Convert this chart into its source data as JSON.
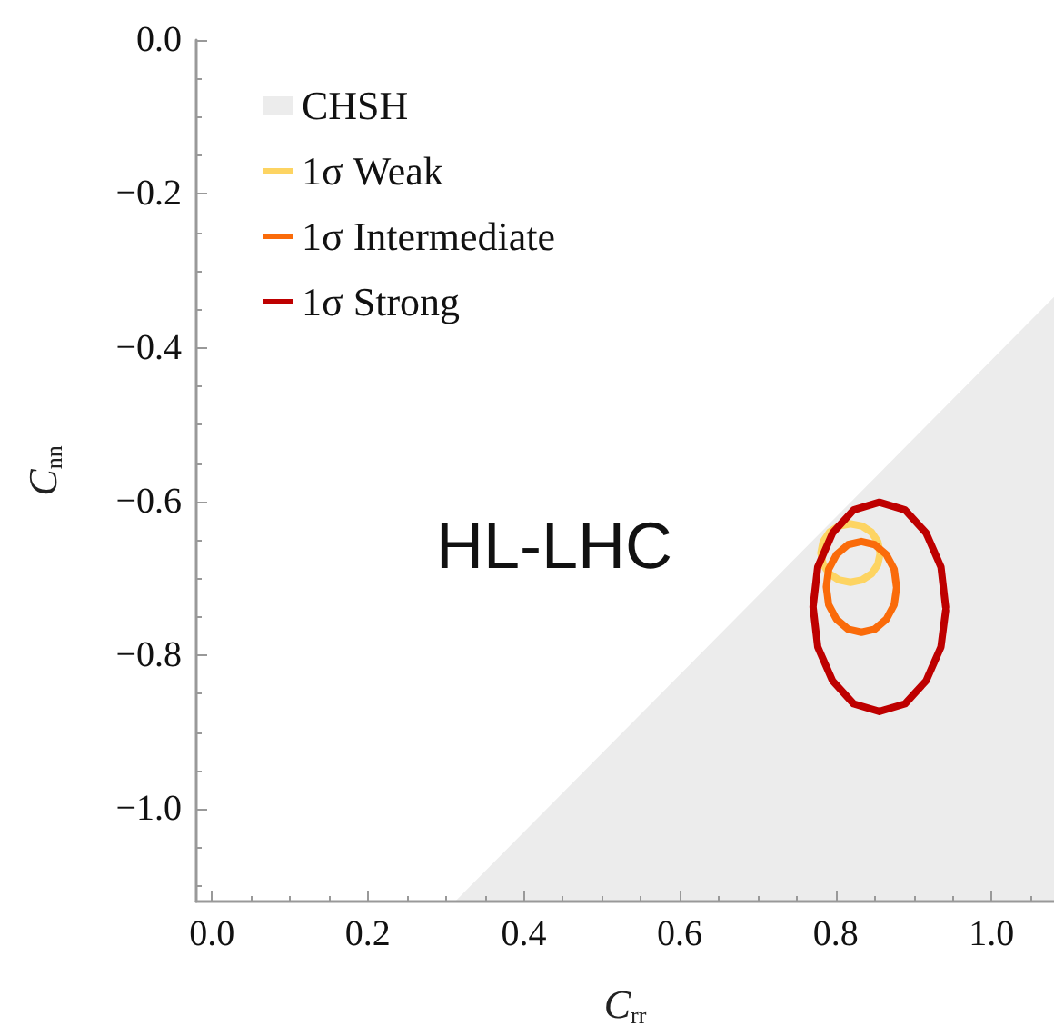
{
  "chart_data": {
    "type": "line",
    "xlabel": "C$_{rr}$",
    "ylabel": "C$_{nn}$",
    "annotations": [
      "HL-LHC"
    ],
    "xlim": [
      -0.02,
      1.08
    ],
    "ylim": [
      -1.12,
      0
    ],
    "xticks": [
      {
        "value": 0,
        "label": "0.0"
      },
      0.2,
      0.4,
      0.6,
      0.8,
      {
        "value": 1,
        "label": "1.0"
      }
    ],
    "yticks": [
      {
        "value": 0,
        "label": "0.0"
      },
      {
        "value": -0.2,
        "label": "−0.2"
      },
      {
        "value": -0.4,
        "label": "−0.4"
      },
      {
        "value": -0.6,
        "label": "−0.6"
      },
      {
        "value": -0.8,
        "label": "−0.8"
      },
      {
        "value": -1,
        "label": "−1.0"
      }
    ],
    "grid": false,
    "legend": "top left",
    "marker": "none",
    "line_style": "solid",
    "series": [
      {
        "name": "CHSH",
        "type": "area",
        "color": "#ececec",
        "x": [
          0.312,
          1.08
        ],
        "values": [
          -1.12,
          -0.334
        ]
      },
      {
        "name": "1σ Weak",
        "color": "#fdd462",
        "x": [
          0.857,
          0.854,
          0.846,
          0.834,
          0.819,
          0.804,
          0.792,
          0.784,
          0.781,
          0.784,
          0.792,
          0.804,
          0.819,
          0.834,
          0.846,
          0.854,
          0.857
        ],
        "values": [
          -0.667,
          -0.652,
          -0.64,
          -0.632,
          -0.629,
          -0.632,
          -0.64,
          -0.652,
          -0.667,
          -0.682,
          -0.694,
          -0.702,
          -0.705,
          -0.702,
          -0.694,
          -0.682,
          -0.668
        ]
      },
      {
        "name": "1σ Intermediate",
        "color": "#fa6b0a",
        "x": [
          0.878,
          0.875,
          0.865,
          0.85,
          0.833,
          0.816,
          0.801,
          0.791,
          0.788,
          0.791,
          0.801,
          0.816,
          0.833,
          0.85,
          0.865,
          0.875,
          0.878
        ],
        "values": [
          -0.711,
          -0.688,
          -0.669,
          -0.656,
          -0.652,
          -0.656,
          -0.669,
          -0.688,
          -0.711,
          -0.734,
          -0.753,
          -0.766,
          -0.77,
          -0.766,
          -0.753,
          -0.734,
          -0.713
        ]
      },
      {
        "name": "1σ Strong",
        "color": "#be0000",
        "x": [
          0.941,
          0.935,
          0.916,
          0.889,
          0.856,
          0.823,
          0.796,
          0.777,
          0.771,
          0.777,
          0.796,
          0.823,
          0.856,
          0.889,
          0.916,
          0.935,
          0.941
        ],
        "values": [
          -0.737,
          -0.685,
          -0.641,
          -0.611,
          -0.601,
          -0.611,
          -0.641,
          -0.685,
          -0.737,
          -0.789,
          -0.833,
          -0.863,
          -0.873,
          -0.863,
          -0.833,
          -0.789,
          -0.742
        ]
      }
    ]
  }
}
